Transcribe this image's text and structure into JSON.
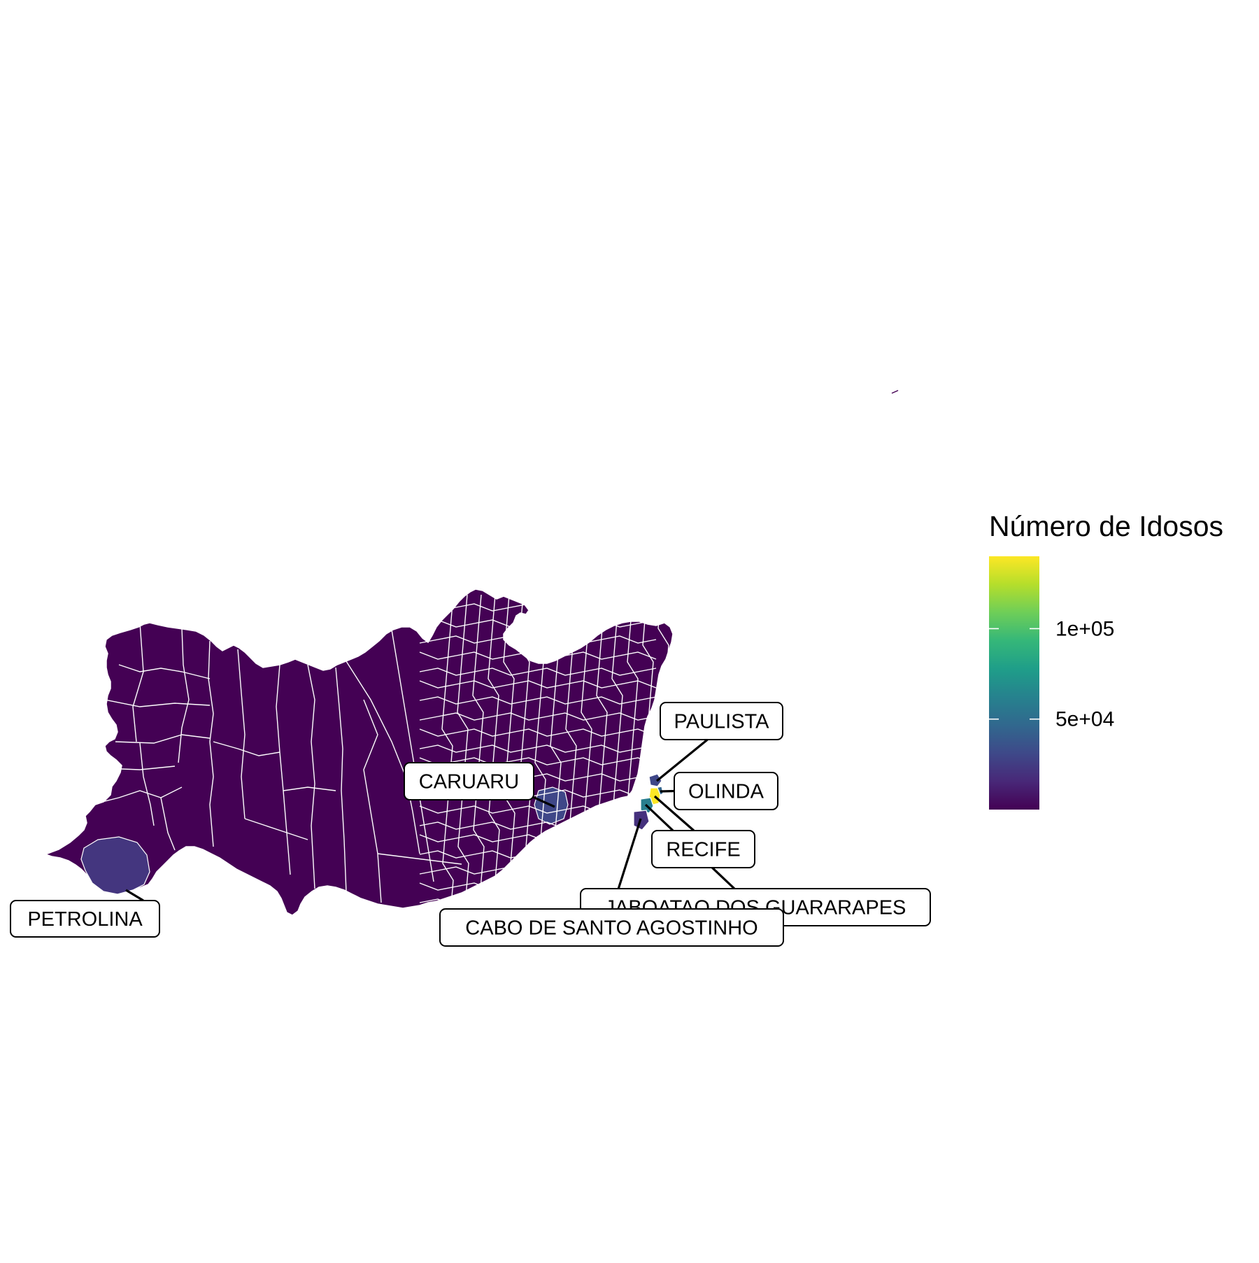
{
  "legend": {
    "title": "Número de Idosos",
    "ticks": [
      {
        "value": 50000,
        "label": "5e+04"
      },
      {
        "value": 100000,
        "label": "1e+05"
      }
    ],
    "min": 0,
    "max": 140000,
    "palette": [
      "#440154",
      "#482878",
      "#3e4989",
      "#31688e",
      "#26828e",
      "#1f9e89",
      "#35b779",
      "#6ece58",
      "#b5de2b",
      "#fde725"
    ]
  },
  "colors": {
    "border": "#ffffff",
    "label_border": "#000000",
    "leader": "#000000",
    "background": "#ffffff"
  },
  "labels": [
    {
      "name": "PETROLINA",
      "value": 22000
    },
    {
      "name": "CARUARU",
      "value": 30000
    },
    {
      "name": "PAULISTA",
      "value": 30000
    },
    {
      "name": "OLINDA",
      "value": 45000
    },
    {
      "name": "RECIFE",
      "value": 140000
    },
    {
      "name": "JABOATAO DOS GUARARAPES",
      "value": 60000
    },
    {
      "name": "CABO DE SANTO AGOSTINHO",
      "value": 20000
    }
  ]
}
